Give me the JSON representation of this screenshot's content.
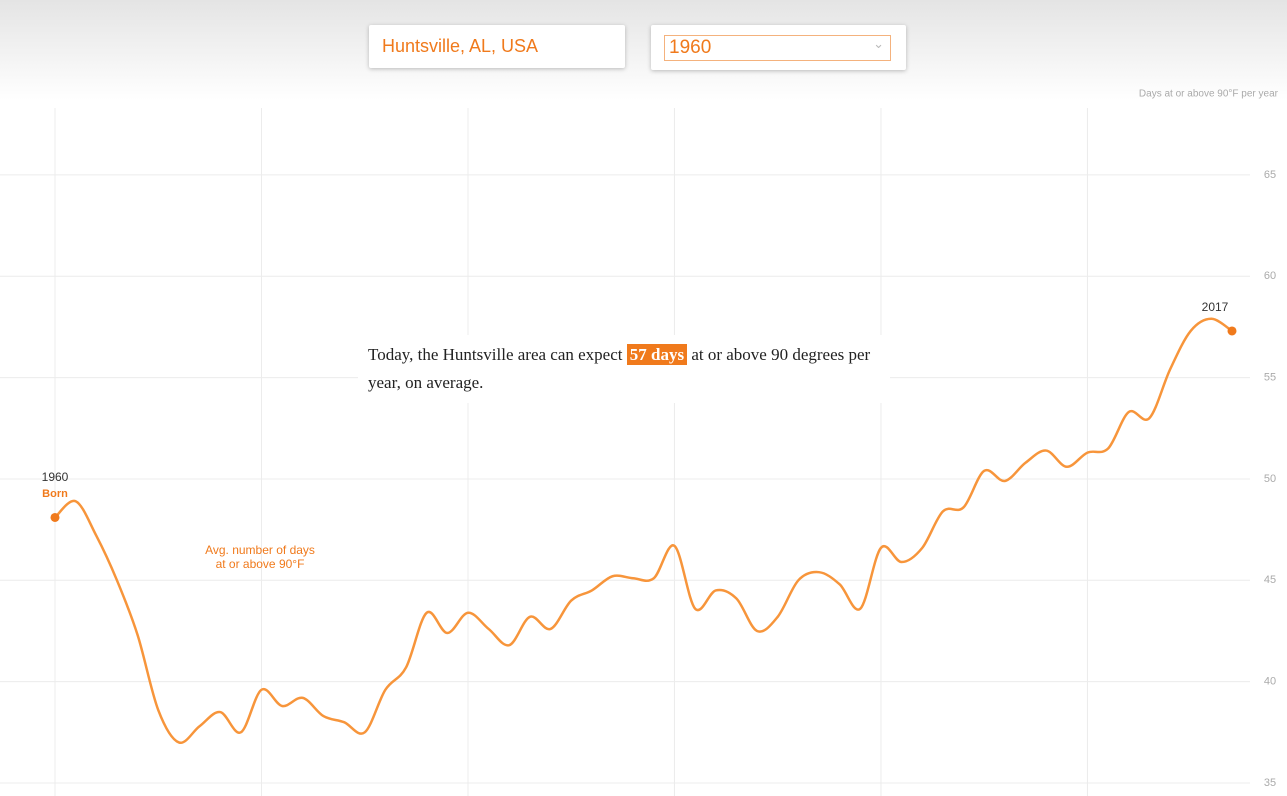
{
  "location_input": "Huntsville, AL, USA",
  "year_select": "1960",
  "callout": {
    "before": "Today, the Huntsville area can expect",
    "highlight": "57 days",
    "after": "at or above 90 degrees per year, on average."
  },
  "chart_data": {
    "type": "line",
    "title": "Days at or above 90°F per year",
    "line_label": [
      "Avg. number of days",
      "at or above 90°F"
    ],
    "start_label": {
      "year": "1960",
      "note": "Born"
    },
    "end_label": "2017",
    "x": [
      1960,
      1961,
      1962,
      1963,
      1964,
      1965,
      1966,
      1967,
      1968,
      1969,
      1970,
      1971,
      1972,
      1973,
      1974,
      1975,
      1976,
      1977,
      1978,
      1979,
      1980,
      1981,
      1982,
      1983,
      1984,
      1985,
      1986,
      1987,
      1988,
      1989,
      1990,
      1991,
      1992,
      1993,
      1994,
      1995,
      1996,
      1997,
      1998,
      1999,
      2000,
      2001,
      2002,
      2003,
      2004,
      2005,
      2006,
      2007,
      2008,
      2009,
      2010,
      2011,
      2012,
      2013,
      2014,
      2015,
      2016,
      2017
    ],
    "series": [
      {
        "color": "#f7953b",
        "values": [
          48.1,
          48.9,
          47.2,
          45.0,
          42.3,
          38.6,
          37.0,
          37.8,
          38.5,
          37.5,
          39.6,
          38.8,
          39.2,
          38.3,
          38.0,
          37.5,
          39.6,
          40.7,
          43.4,
          42.4,
          43.4,
          42.6,
          41.8,
          43.2,
          42.6,
          44.0,
          44.5,
          45.2,
          45.1,
          45.1,
          46.7,
          43.6,
          44.5,
          44.1,
          42.5,
          43.2,
          45.0,
          45.4,
          44.8,
          43.6,
          46.6,
          45.9,
          46.6,
          48.4,
          48.6,
          50.4,
          49.9,
          50.8,
          51.4,
          50.6,
          51.3,
          51.5,
          53.3,
          53.0,
          55.4,
          57.3,
          57.9,
          57.3
        ]
      }
    ],
    "xlim": [
      1960,
      2017
    ],
    "xticks": [
      1960,
      1970,
      1980,
      1990,
      2000,
      2010
    ],
    "ylim": [
      35,
      68.3
    ],
    "yticks": [
      35,
      40,
      45,
      50,
      55,
      60,
      65
    ],
    "grid": true
  }
}
